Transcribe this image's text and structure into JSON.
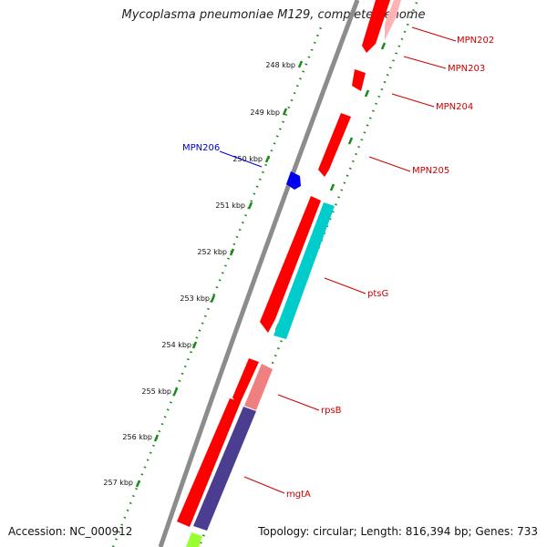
{
  "title": "Mycoplasma pneumoniae M129, complete genome",
  "footer": {
    "accession": "Accession: NC_000912",
    "summary": "Topology: circular; Length: 816,394 bp; Genes: 733"
  },
  "colors": {
    "backbone": "#8c8c8c",
    "tick": "#1a8a1a",
    "gene_red": "#ff0000",
    "label_red": "#cc0000",
    "label_blue": "#0000cc"
  },
  "ruler": {
    "unit": "kbp",
    "ticks": [
      "248 kbp",
      "249 kbp",
      "250 kbp",
      "251 kbp",
      "252 kbp",
      "253 kbp",
      "254 kbp",
      "255 kbp",
      "256 kbp",
      "257 kbp"
    ]
  },
  "genes": [
    {
      "name": "MPN202",
      "color": "#ff0000",
      "accent": "#ffaaaa",
      "strand": "plus"
    },
    {
      "name": "MPN203",
      "color": "#ff0000",
      "strand": "plus"
    },
    {
      "name": "MPN204",
      "color": "#ff0000",
      "strand": "plus"
    },
    {
      "name": "MPN205",
      "color": "#ff0000",
      "strand": "plus"
    },
    {
      "name": "MPN206",
      "color": "#0000ff",
      "strand": "minus"
    },
    {
      "name": "ptsG",
      "color": "#00cccc",
      "strand": "plus"
    },
    {
      "name": "rpsB",
      "color": "#f08080",
      "strand": "plus"
    },
    {
      "name": "mgtA",
      "color": "#4b3d8f",
      "strand": "plus"
    }
  ],
  "other_features": [
    {
      "color": "#ff0000"
    },
    {
      "color": "#ff0000"
    },
    {
      "color": "#ff0000"
    },
    {
      "color": "#99ff33"
    }
  ]
}
